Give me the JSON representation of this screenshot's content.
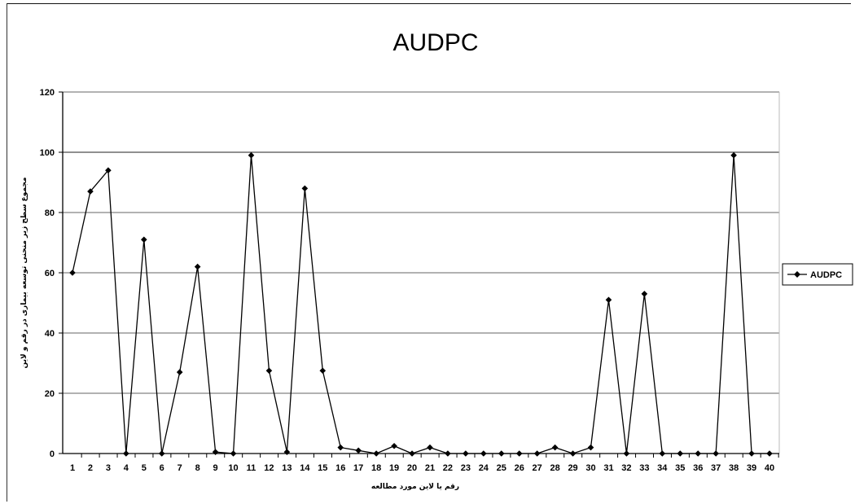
{
  "chart_data": {
    "type": "line",
    "title": "AUDPC",
    "xlabel": "رقم یا لاین مورد مطالعه",
    "ylabel": "مجموع سطح زیر منحنی توسعه بیماری در رقم و لاین",
    "ylim": [
      0,
      120
    ],
    "yticks": [
      0,
      20,
      40,
      60,
      80,
      100,
      120
    ],
    "grid": true,
    "legend": "right",
    "categories": [
      "1",
      "2",
      "3",
      "4",
      "5",
      "6",
      "7",
      "8",
      "9",
      "10",
      "11",
      "12",
      "13",
      "14",
      "15",
      "16",
      "17",
      "18",
      "19",
      "20",
      "21",
      "22",
      "23",
      "24",
      "25",
      "26",
      "27",
      "28",
      "29",
      "30",
      "31",
      "32",
      "33",
      "34",
      "35",
      "36",
      "37",
      "38",
      "39",
      "40"
    ],
    "series": [
      {
        "name": "AUDPC",
        "color": "#000000",
        "marker": "diamond",
        "values": [
          60,
          87,
          94,
          0,
          71,
          0,
          27,
          62,
          0.5,
          0,
          99,
          27.5,
          0.5,
          88,
          27.5,
          2,
          1,
          0,
          2.5,
          0,
          2,
          0,
          0,
          0,
          0,
          0,
          0,
          2,
          0,
          2,
          51,
          0,
          53,
          0,
          0,
          0,
          0,
          99,
          0,
          0
        ]
      }
    ]
  }
}
